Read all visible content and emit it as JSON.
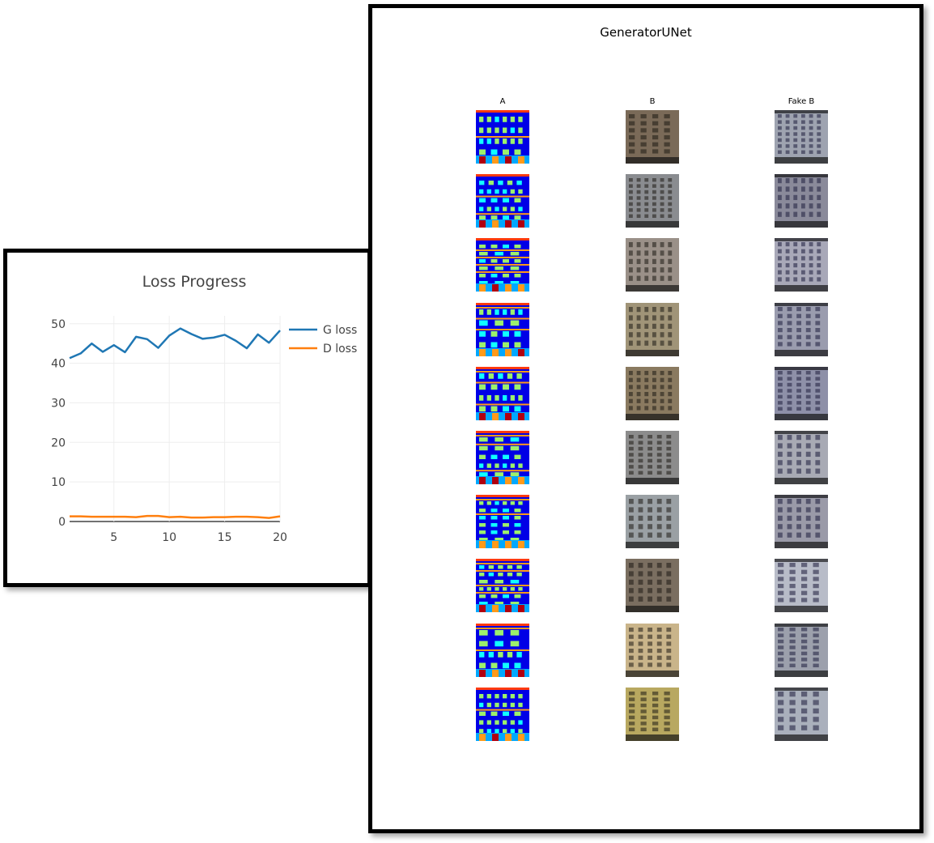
{
  "chart_data": [
    {
      "type": "line",
      "title": "Loss Progress",
      "xlabel": "",
      "ylabel": "",
      "x": [
        1,
        2,
        3,
        4,
        5,
        6,
        7,
        8,
        9,
        10,
        11,
        12,
        13,
        14,
        15,
        16,
        17,
        18,
        19,
        20
      ],
      "xlim": [
        1,
        20
      ],
      "ylim": [
        0,
        52
      ],
      "xticks": [
        5,
        10,
        15,
        20
      ],
      "yticks": [
        0,
        10,
        20,
        30,
        40,
        50
      ],
      "grid": true,
      "legend_position": "right",
      "series": [
        {
          "name": "G loss",
          "color": "#1f77b4",
          "values": [
            41.3,
            42.5,
            45.0,
            42.9,
            44.6,
            42.8,
            46.7,
            46.1,
            43.9,
            47.0,
            48.8,
            47.4,
            46.2,
            46.5,
            47.2,
            45.7,
            43.8,
            47.3,
            45.2,
            48.3
          ]
        },
        {
          "name": "D loss",
          "color": "#ff7f0e",
          "values": [
            1.3,
            1.3,
            1.2,
            1.2,
            1.2,
            1.2,
            1.1,
            1.4,
            1.4,
            1.1,
            1.2,
            1.0,
            1.0,
            1.1,
            1.1,
            1.2,
            1.2,
            1.1,
            0.9,
            1.3
          ]
        }
      ]
    }
  ],
  "samples": {
    "title": "GeneratorUNet",
    "columns": [
      "A",
      "B",
      "Fake B"
    ],
    "rows": 10
  },
  "colors": {
    "label_blue": "#0000e6",
    "label_light_blue": "#00a8ff",
    "label_green": "#9cf06c",
    "label_orange": "#ff9a1a",
    "label_red": "#ff3a10",
    "label_dark_red": "#b00010",
    "label_cyan": "#10ffff"
  }
}
